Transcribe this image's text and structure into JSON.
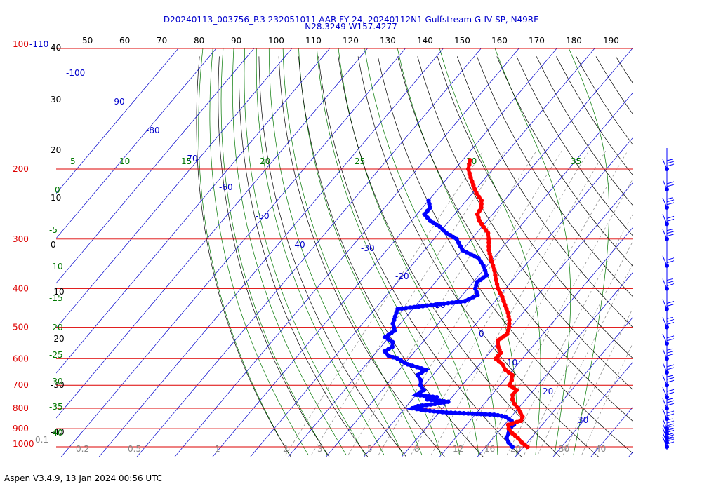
{
  "header": {
    "line1": "D20240113_003756_P.3 232051011 AAR FY 24, 20240112N1 Gulfstream G-IV SP, N49RF",
    "line2": "N28.3249 W157.4277"
  },
  "footer": {
    "text": "Aspen V3.4.9, 13 Jan 2024  00:56 UTC"
  },
  "colors": {
    "pressure_lines": "#dd0000",
    "isotherms": "#0000cc",
    "dry_adiabats": "#000000",
    "moist_adiabats": "#007700",
    "mixing_ratio": "#888888",
    "temperature": "#ff0000",
    "dewpoint": "#0000ff"
  },
  "chart_data": {
    "type": "skew-t",
    "pressure_axis": {
      "labels": [
        "100-110",
        "200",
        "300",
        "400",
        "500",
        "600",
        "700",
        "800",
        "900",
        "1000"
      ],
      "pressures_hpa": [
        100,
        200,
        300,
        400,
        500,
        600,
        700,
        800,
        900,
        1000
      ]
    },
    "top_axis_labels": [
      "50",
      "60",
      "70",
      "80",
      "90",
      "100",
      "110",
      "120",
      "130",
      "140",
      "150",
      "160",
      "170",
      "180",
      "190"
    ],
    "dry_adiabat_labels": [
      "40",
      "30",
      "20",
      "10",
      "0",
      "-10",
      "-20",
      "-30",
      "-40"
    ],
    "moist_adiabat_labels_left": [
      "0",
      "-5",
      "-10",
      "-15",
      "-20",
      "-25",
      "-30",
      "-35",
      "-40"
    ],
    "moist_adiabat_labels_top": [
      "5",
      "10",
      "15",
      "20",
      "25",
      "30",
      "35"
    ],
    "isotherm_labels": [
      "-100",
      "-90",
      "-80",
      "-70",
      "-60",
      "-50",
      "-40",
      "-30",
      "-20",
      "-10",
      "0",
      "10",
      "20",
      "30"
    ],
    "mixing_ratio_labels": [
      "0.1",
      "0.2",
      "0.5",
      "1",
      "2",
      "3",
      "5",
      "8",
      "12",
      "16",
      "20",
      "30",
      "40"
    ],
    "temperature_profile": [
      {
        "p": 1000,
        "t": 21
      },
      {
        "p": 975,
        "t": 18.5
      },
      {
        "p": 950,
        "t": 16.5
      },
      {
        "p": 925,
        "t": 14
      },
      {
        "p": 900,
        "t": 12
      },
      {
        "p": 880,
        "t": 11
      },
      {
        "p": 860,
        "t": 13.5
      },
      {
        "p": 840,
        "t": 13
      },
      {
        "p": 820,
        "t": 11.5
      },
      {
        "p": 800,
        "t": 10
      },
      {
        "p": 780,
        "t": 8
      },
      {
        "p": 760,
        "t": 6.5
      },
      {
        "p": 740,
        "t": 5.5
      },
      {
        "p": 720,
        "t": 5.5
      },
      {
        "p": 700,
        "t": 2.5
      },
      {
        "p": 680,
        "t": 2
      },
      {
        "p": 660,
        "t": 1
      },
      {
        "p": 640,
        "t": -2
      },
      {
        "p": 620,
        "t": -4
      },
      {
        "p": 600,
        "t": -7
      },
      {
        "p": 580,
        "t": -7
      },
      {
        "p": 560,
        "t": -9
      },
      {
        "p": 540,
        "t": -10.5
      },
      {
        "p": 520,
        "t": -9.5
      },
      {
        "p": 500,
        "t": -10.5
      },
      {
        "p": 480,
        "t": -12
      },
      {
        "p": 460,
        "t": -14
      },
      {
        "p": 440,
        "t": -16.5
      },
      {
        "p": 420,
        "t": -19
      },
      {
        "p": 400,
        "t": -22
      },
      {
        "p": 380,
        "t": -24.5
      },
      {
        "p": 360,
        "t": -27
      },
      {
        "p": 340,
        "t": -30
      },
      {
        "p": 320,
        "t": -33
      },
      {
        "p": 300,
        "t": -35.5
      },
      {
        "p": 290,
        "t": -37
      },
      {
        "p": 280,
        "t": -39.5
      },
      {
        "p": 270,
        "t": -42
      },
      {
        "p": 260,
        "t": -44
      },
      {
        "p": 250,
        "t": -44.5
      },
      {
        "p": 240,
        "t": -46
      },
      {
        "p": 230,
        "t": -49
      },
      {
        "p": 220,
        "t": -51.5
      },
      {
        "p": 210,
        "t": -54
      },
      {
        "p": 200,
        "t": -56.5
      },
      {
        "p": 190,
        "t": -58
      }
    ],
    "dewpoint_profile": [
      {
        "p": 1000,
        "td": 17
      },
      {
        "p": 975,
        "td": 15
      },
      {
        "p": 950,
        "td": 13.5
      },
      {
        "p": 925,
        "td": 13
      },
      {
        "p": 900,
        "td": 12
      },
      {
        "p": 880,
        "td": 12.5
      },
      {
        "p": 860,
        "td": 11
      },
      {
        "p": 840,
        "td": 8.5
      },
      {
        "p": 830,
        "td": 5
      },
      {
        "p": 820,
        "td": -8
      },
      {
        "p": 810,
        "td": -14
      },
      {
        "p": 800,
        "td": -18
      },
      {
        "p": 790,
        "td": -17
      },
      {
        "p": 780,
        "td": -13
      },
      {
        "p": 770,
        "td": -10
      },
      {
        "p": 760,
        "td": -16
      },
      {
        "p": 750,
        "td": -14
      },
      {
        "p": 740,
        "td": -20
      },
      {
        "p": 720,
        "td": -19
      },
      {
        "p": 700,
        "td": -21
      },
      {
        "p": 680,
        "td": -22
      },
      {
        "p": 660,
        "td": -24
      },
      {
        "p": 640,
        "td": -23
      },
      {
        "p": 620,
        "td": -29
      },
      {
        "p": 600,
        "td": -33
      },
      {
        "p": 590,
        "td": -36
      },
      {
        "p": 575,
        "td": -38
      },
      {
        "p": 560,
        "td": -37
      },
      {
        "p": 545,
        "td": -38
      },
      {
        "p": 530,
        "td": -41
      },
      {
        "p": 510,
        "td": -40
      },
      {
        "p": 490,
        "td": -42
      },
      {
        "p": 470,
        "td": -43
      },
      {
        "p": 450,
        "td": -44
      },
      {
        "p": 440,
        "td": -36
      },
      {
        "p": 430,
        "td": -28
      },
      {
        "p": 415,
        "td": -26
      },
      {
        "p": 400,
        "td": -28
      },
      {
        "p": 385,
        "td": -29
      },
      {
        "p": 370,
        "td": -28
      },
      {
        "p": 350,
        "td": -31
      },
      {
        "p": 335,
        "td": -34
      },
      {
        "p": 320,
        "td": -40
      },
      {
        "p": 300,
        "td": -44
      },
      {
        "p": 290,
        "td": -48
      },
      {
        "p": 280,
        "td": -51
      },
      {
        "p": 270,
        "td": -55
      },
      {
        "p": 260,
        "td": -58
      },
      {
        "p": 250,
        "td": -58
      },
      {
        "p": 240,
        "td": -60
      }
    ],
    "wind_barbs": [
      {
        "p": 1000
      },
      {
        "p": 975
      },
      {
        "p": 950
      },
      {
        "p": 925
      },
      {
        "p": 900
      },
      {
        "p": 850
      },
      {
        "p": 800
      },
      {
        "p": 750
      },
      {
        "p": 700
      },
      {
        "p": 650
      },
      {
        "p": 600
      },
      {
        "p": 550
      },
      {
        "p": 500
      },
      {
        "p": 450
      },
      {
        "p": 400
      },
      {
        "p": 350
      },
      {
        "p": 300
      },
      {
        "p": 275
      },
      {
        "p": 250
      },
      {
        "p": 225
      },
      {
        "p": 200
      }
    ]
  }
}
